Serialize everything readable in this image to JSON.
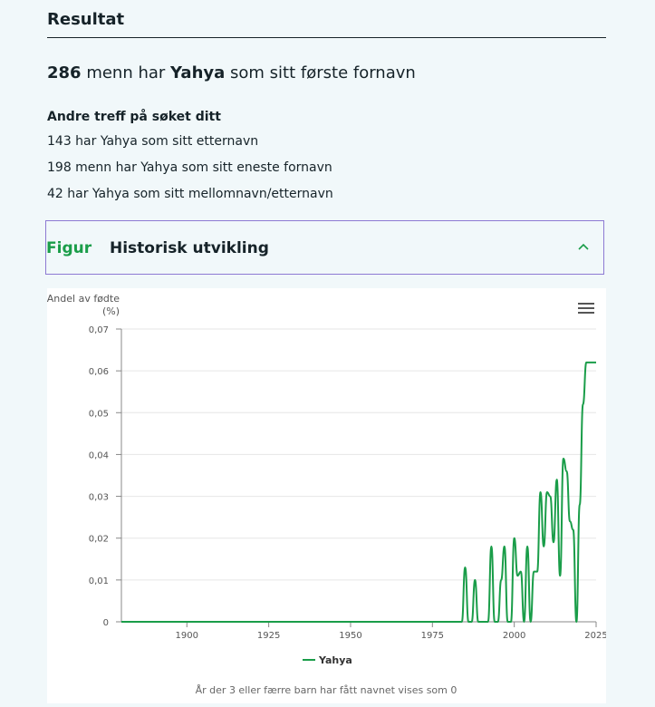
{
  "result": {
    "section_title": "Resultat",
    "count": "286",
    "text_before_name": "menn har",
    "name": "Yahya",
    "text_after_name": "som sitt første fornavn"
  },
  "other_hits": {
    "title": "Andre treff på søket ditt",
    "items": [
      "143 har Yahya som sitt etternavn",
      "198 menn har Yahya som sitt eneste fornavn",
      "42 har Yahya som sitt mellomnavn/etternavn"
    ]
  },
  "figure": {
    "label": "Figur",
    "title": "Historisk utvikling",
    "chevron_icon": "chevron-up-icon",
    "menu_icon": "hamburger-menu-icon",
    "footnote": "År der 3 eller færre barn har fått navnet vises som 0"
  },
  "chart_data": {
    "type": "line",
    "ylabel_line1": "Andel av fødte",
    "ylabel_line2": "(%)",
    "xlim": [
      1880,
      2025
    ],
    "ylim": [
      0,
      0.07
    ],
    "x_ticks": [
      1900,
      1925,
      1950,
      1975,
      2000,
      2025
    ],
    "y_ticks": [
      "0",
      "0,01",
      "0,02",
      "0,03",
      "0,04",
      "0,05",
      "0,06",
      "0,07"
    ],
    "grid": true,
    "legend_position": "bottom",
    "series": [
      {
        "name": "Yahya",
        "color": "#1a9d49",
        "x": [
          1880,
          1984,
          1985,
          1986,
          1987,
          1988,
          1989,
          1992,
          1993,
          1994,
          1995,
          1996,
          1997,
          1998,
          1999,
          2000,
          2001,
          2002,
          2003,
          2004,
          2005,
          2006,
          2007,
          2008,
          2009,
          2010,
          2011,
          2012,
          2013,
          2014,
          2015,
          2016,
          2017,
          2018,
          2019,
          2020,
          2021,
          2022,
          2023,
          2024,
          2025
        ],
        "values": [
          0,
          0,
          0.013,
          0,
          0,
          0.01,
          0,
          0,
          0.018,
          0,
          0,
          0.01,
          0.018,
          0,
          0,
          0.02,
          0.011,
          0.012,
          0,
          0.018,
          0,
          0.012,
          0.012,
          0.031,
          0.018,
          0.031,
          0.03,
          0.019,
          0.034,
          0.011,
          0.039,
          0.036,
          0.024,
          0.022,
          0,
          0.028,
          0.052,
          0.062,
          0.062,
          0.062,
          0.062
        ]
      }
    ]
  }
}
